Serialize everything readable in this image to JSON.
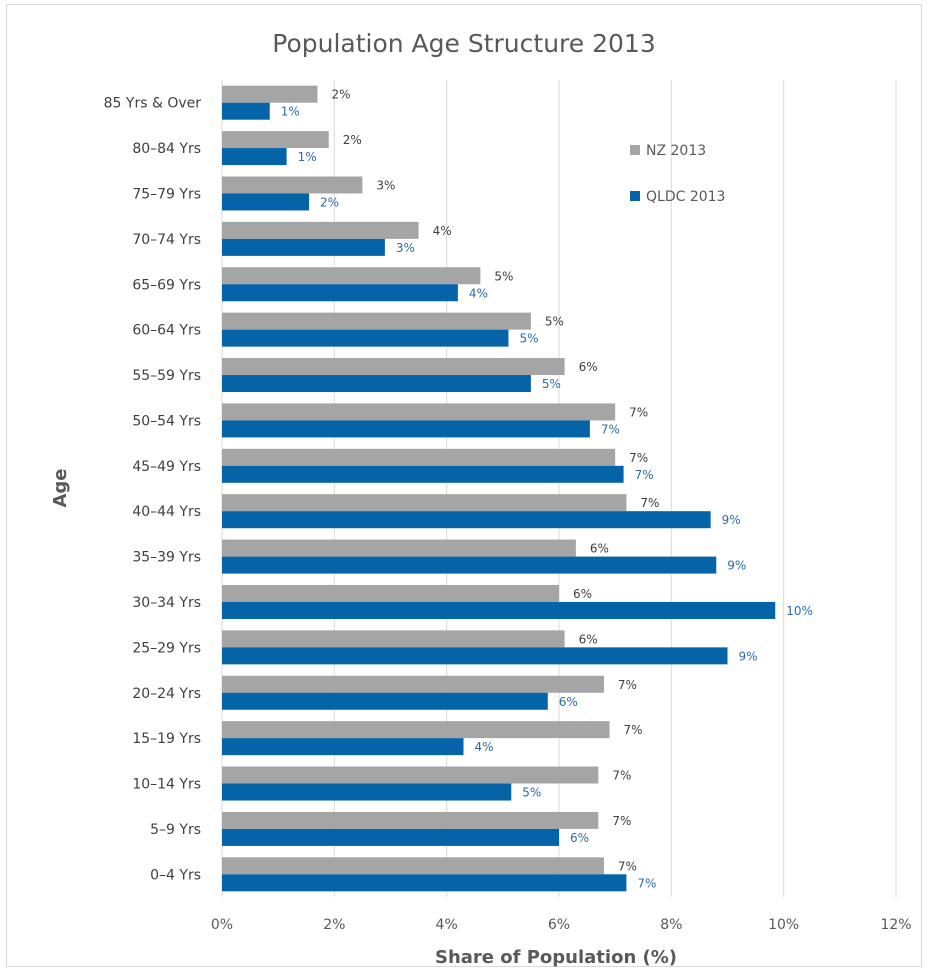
{
  "chart_data": {
    "type": "bar",
    "orientation": "horizontal",
    "title": "Population Age Structure 2013",
    "xlabel": "Share of Population (%)",
    "ylabel": "Age",
    "xlim": [
      0,
      12
    ],
    "x_ticks": [
      "0%",
      "2%",
      "4%",
      "6%",
      "8%",
      "10%",
      "12%"
    ],
    "grid": true,
    "legend_position": "top-right",
    "categories": [
      "85 Yrs & Over",
      "80–84 Yrs",
      "75–79 Yrs",
      "70–74 Yrs",
      "65–69 Yrs",
      "60–64 Yrs",
      "55–59 Yrs",
      "50–54 Yrs",
      "45–49 Yrs",
      "40–44 Yrs",
      "35–39 Yrs",
      "30–34 Yrs",
      "25–29 Yrs",
      "20–24 Yrs",
      "15–19 Yrs",
      "10–14 Yrs",
      "5–9 Yrs",
      "0–4 Yrs"
    ],
    "series": [
      {
        "name": "NZ 2013",
        "color": "#a5a5a5",
        "values": [
          1.7,
          1.9,
          2.5,
          3.5,
          4.6,
          5.5,
          6.1,
          7.0,
          7.0,
          7.2,
          6.3,
          6.0,
          6.1,
          6.8,
          6.9,
          6.7,
          6.7,
          6.8
        ],
        "labels": [
          "2%",
          "2%",
          "3%",
          "4%",
          "5%",
          "5%",
          "6%",
          "7%",
          "7%",
          "7%",
          "6%",
          "6%",
          "6%",
          "7%",
          "7%",
          "7%",
          "7%",
          "7%"
        ]
      },
      {
        "name": "QLDC 2013",
        "color": "#0563a8",
        "values": [
          0.85,
          1.15,
          1.55,
          2.9,
          4.2,
          5.1,
          5.5,
          6.55,
          7.15,
          8.7,
          8.8,
          9.85,
          9.0,
          5.8,
          4.3,
          5.15,
          6.0,
          7.2
        ],
        "labels": [
          "1%",
          "1%",
          "2%",
          "3%",
          "4%",
          "5%",
          "5%",
          "7%",
          "7%",
          "9%",
          "9%",
          "10%",
          "9%",
          "6%",
          "4%",
          "5%",
          "6%",
          "7%"
        ]
      }
    ]
  }
}
